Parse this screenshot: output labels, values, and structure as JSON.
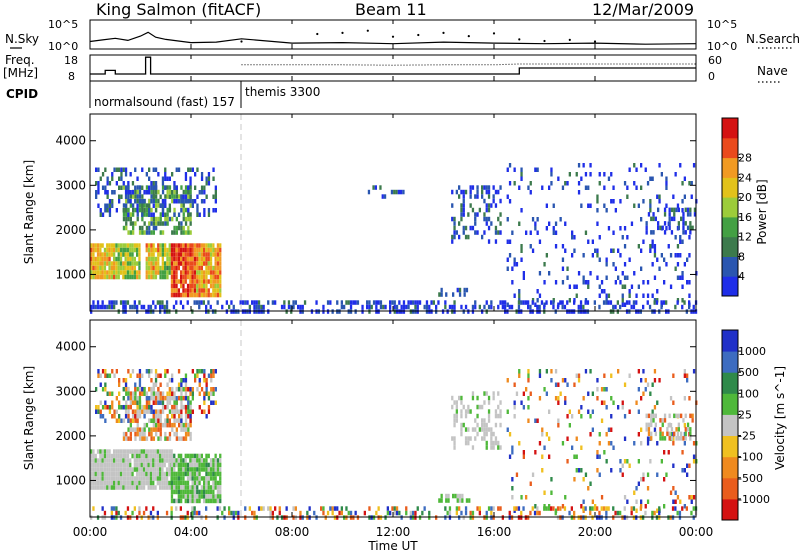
{
  "header": {
    "station": "King Salmon (fitACF)",
    "beam": "Beam 11",
    "date": "12/Mar/2009"
  },
  "aux_labels": {
    "nsky": "N.Sky",
    "nsearch": "N.Search",
    "freq_line1": "Freq.",
    "freq_line2": "[MHz]",
    "nave": "Nave",
    "cpid": "CPID",
    "nsky_ticks": [
      "10^5",
      "10^0"
    ],
    "freq_ticks": [
      "18",
      "8"
    ],
    "nave_ticks": [
      "60",
      "0"
    ]
  },
  "cpid_segments": [
    {
      "label": "normalsound (fast) 157",
      "start_h": 0.0
    },
    {
      "label": "themis 3300",
      "start_h": 6.0
    }
  ],
  "colors": {
    "power_scale": [
      "#1f2ee8",
      "#2a56b0",
      "#3c7a4c",
      "#43a043",
      "#9ccc3a",
      "#e2c21a",
      "#f19a22",
      "#ea4a1c",
      "#d41212"
    ],
    "velocity_scale": [
      "#2030c8",
      "#3d6cc0",
      "#2f8a4a",
      "#4fb83a",
      "#c4c4c4",
      "#f0c020",
      "#ef8a1f",
      "#e95d1d",
      "#d41212"
    ]
  },
  "chart_data": [
    {
      "type": "line",
      "title": "",
      "panel": "N.Sky / N.Search",
      "x_range_hours": [
        0,
        24
      ],
      "series": [
        {
          "name": "N.Sky",
          "x": [
            0,
            0.5,
            1,
            1.5,
            2,
            2.3,
            2.6,
            3,
            3.5,
            4,
            5,
            6,
            8,
            10,
            12,
            14,
            16,
            18,
            20,
            22,
            24
          ],
          "y": [
            1.2,
            1.5,
            1.8,
            1.4,
            2.2,
            2.9,
            2.0,
            1.6,
            1.3,
            1.0,
            1.1,
            1.7,
            0.9,
            1.0,
            0.8,
            1.1,
            0.9,
            0.8,
            0.9,
            0.7,
            0.8
          ]
        },
        {
          "name": "N.Search",
          "x": [
            6,
            9,
            10,
            11,
            12,
            13,
            14,
            15,
            16,
            17,
            18,
            19,
            20
          ],
          "y": [
            1.2,
            2.6,
            2.8,
            3.2,
            2.1,
            2.4,
            2.8,
            2.2,
            2.7,
            1.6,
            1.3,
            1.5,
            1.2
          ]
        }
      ]
    },
    {
      "type": "line",
      "title": "",
      "panel": "Freq. / Nave",
      "x_range_hours": [
        0,
        24
      ],
      "ylim_freq_mhz": [
        8,
        18
      ],
      "ylim_nave": [
        0,
        60
      ],
      "series": [
        {
          "name": "Freq.",
          "x": [
            0,
            0.6,
            0.6,
            1.0,
            1.0,
            2.2,
            2.2,
            2.4,
            2.4,
            17.0,
            17.0,
            24.0
          ],
          "y": [
            10.5,
            10.5,
            12.0,
            12.0,
            10.5,
            10.5,
            17.5,
            17.5,
            10.5,
            10.5,
            13.0,
            13.0
          ]
        },
        {
          "name": "Nave",
          "x": [
            6.0,
            8.0,
            10.0,
            12.0,
            14.0,
            16.0,
            17.0,
            18.0,
            20.0,
            22.0,
            24.0
          ],
          "y": [
            38,
            38,
            38,
            37,
            38,
            38,
            40,
            40,
            40,
            40,
            40
          ]
        }
      ]
    },
    {
      "type": "heatmap",
      "title": "",
      "ylabel": "Slant Range [km]",
      "colorbar_label": "Power [dB]",
      "colorbar_ticks": [
        "4",
        "8",
        "12",
        "16",
        "20",
        "24",
        "28"
      ],
      "x_range_hours": [
        0,
        24
      ],
      "ylim": [
        180,
        4600
      ],
      "y_ticks": [
        "1000",
        "2000",
        "3000",
        "4000"
      ],
      "regions": [
        {
          "t0": 0.0,
          "t1": 2.0,
          "r0": 900,
          "r1": 1700,
          "density": 0.95,
          "level": 0.55
        },
        {
          "t0": 2.2,
          "t1": 3.2,
          "r0": 900,
          "r1": 1700,
          "density": 0.9,
          "level": 0.55
        },
        {
          "t0": 3.2,
          "t1": 5.2,
          "r0": 500,
          "r1": 1700,
          "density": 0.95,
          "level": 0.75
        },
        {
          "t0": 1.3,
          "t1": 4.0,
          "r0": 1900,
          "r1": 3000,
          "density": 0.6,
          "level": 0.35
        },
        {
          "t0": 0.2,
          "t1": 5.0,
          "r0": 2300,
          "r1": 3400,
          "density": 0.35,
          "level": 0.15
        },
        {
          "t0": 11.0,
          "t1": 12.5,
          "r0": 2700,
          "r1": 3000,
          "density": 0.25,
          "level": 0.1
        },
        {
          "t0": 14.3,
          "t1": 16.3,
          "r0": 1700,
          "r1": 3000,
          "density": 0.35,
          "level": 0.12
        },
        {
          "t0": 13.7,
          "t1": 15.0,
          "r0": 550,
          "r1": 700,
          "density": 0.5,
          "level": 0.15
        },
        {
          "t0": 16.5,
          "t1": 24.0,
          "r0": 300,
          "r1": 3500,
          "density": 0.1,
          "level": 0.1
        },
        {
          "t0": 22.0,
          "t1": 24.0,
          "r0": 1900,
          "r1": 2500,
          "density": 0.45,
          "level": 0.12
        },
        {
          "t0": 0.0,
          "t1": 24.0,
          "r0": 200,
          "r1": 420,
          "density": 0.4,
          "level": 0.1
        }
      ]
    },
    {
      "type": "heatmap",
      "title": "",
      "ylabel": "Slant Range [km]",
      "colorbar_label": "Velocity [m s^-1]",
      "colorbar_ticks": [
        "1000",
        "500",
        "100",
        "25",
        "-25",
        "-100",
        "-500",
        "-1000"
      ],
      "x_range_hours": [
        0,
        24
      ],
      "xlabel": "Time UT",
      "x_ticks": [
        "00:00",
        "04:00",
        "08:00",
        "12:00",
        "16:00",
        "20:00",
        "00:00"
      ],
      "ylim": [
        180,
        4600
      ],
      "y_ticks": [
        "1000",
        "2000",
        "3000",
        "4000"
      ],
      "regions": [
        {
          "t0": 0.0,
          "t1": 3.2,
          "r0": 850,
          "r1": 1700,
          "density": 0.95,
          "mix": "gray"
        },
        {
          "t0": 3.2,
          "t1": 5.2,
          "r0": 500,
          "r1": 1600,
          "density": 0.9,
          "mix": "green"
        },
        {
          "t0": 1.3,
          "t1": 4.0,
          "r0": 1900,
          "r1": 3100,
          "density": 0.6,
          "mix": "grayred"
        },
        {
          "t0": 0.2,
          "t1": 5.0,
          "r0": 2300,
          "r1": 3500,
          "density": 0.35,
          "mix": "mixed"
        },
        {
          "t0": 14.3,
          "t1": 16.3,
          "r0": 1700,
          "r1": 3000,
          "density": 0.35,
          "mix": "gray"
        },
        {
          "t0": 13.7,
          "t1": 15.0,
          "r0": 550,
          "r1": 700,
          "density": 0.5,
          "mix": "green"
        },
        {
          "t0": 16.5,
          "t1": 24.0,
          "r0": 300,
          "r1": 3500,
          "density": 0.1,
          "mix": "mixed"
        },
        {
          "t0": 22.0,
          "t1": 24.0,
          "r0": 1900,
          "r1": 2500,
          "density": 0.45,
          "mix": "grayred"
        },
        {
          "t0": 0.0,
          "t1": 24.0,
          "r0": 200,
          "r1": 420,
          "density": 0.35,
          "mix": "mixed"
        }
      ]
    }
  ]
}
